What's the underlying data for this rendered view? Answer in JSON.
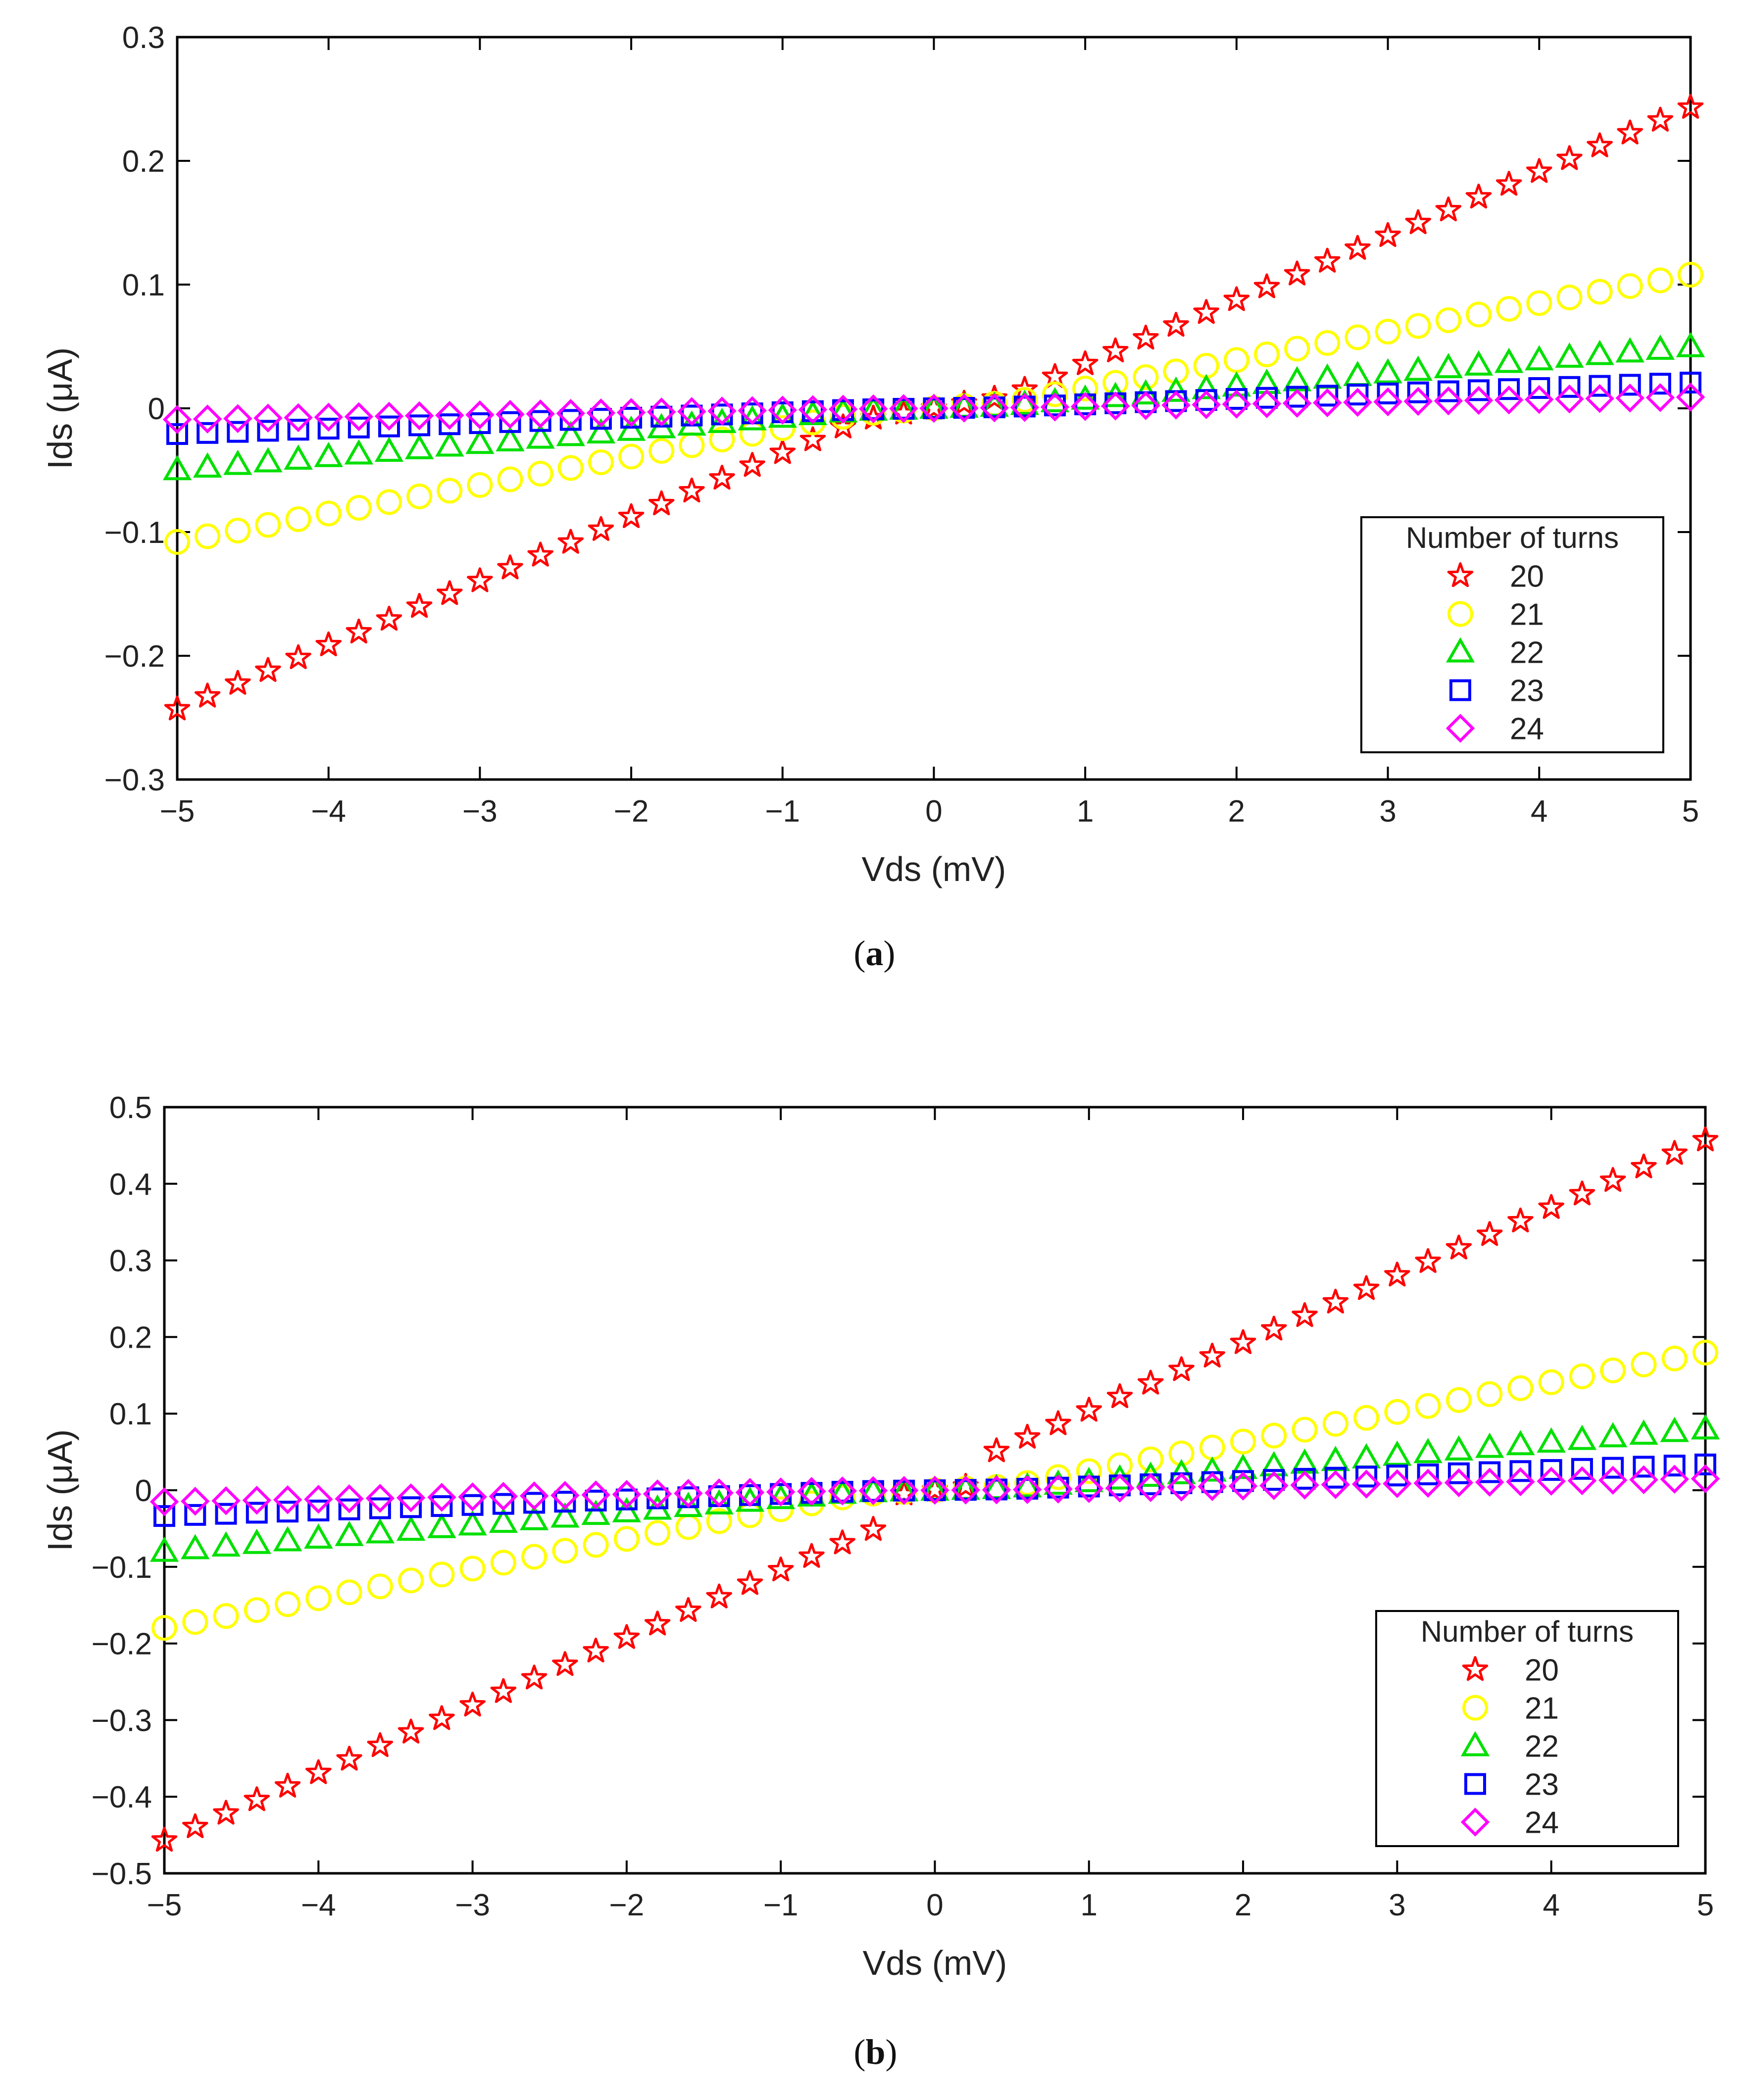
{
  "panels": [
    {
      "caption_letter": "a",
      "chart_data": {
        "type": "scatter",
        "xlabel": "Vds (mV)",
        "ylabel": "Ids (μA)",
        "xlim": [
          -5,
          5
        ],
        "ylim": [
          -0.3,
          0.3
        ],
        "xticks": [
          -5,
          -4,
          -3,
          -2,
          -1,
          0,
          1,
          2,
          3,
          4,
          5
        ],
        "xtick_labels": [
          "−5",
          "−4",
          "−3",
          "−2",
          "−1",
          "0",
          "1",
          "2",
          "3",
          "4",
          "5"
        ],
        "yticks": [
          -0.3,
          -0.2,
          -0.1,
          0,
          0.1,
          0.2,
          0.3
        ],
        "ytick_labels": [
          "−0.3",
          "−0.2",
          "−0.1",
          "0",
          "0.1",
          "0.2",
          "0.3"
        ],
        "grid": false,
        "legend": {
          "title": "Number of turns",
          "position": "lower-right"
        },
        "x": {
          "start": -5,
          "stop": 5,
          "step": 0.2
        },
        "series": [
          {
            "name": "20",
            "marker": "star",
            "color": "#ff0000",
            "outer_slope": 0.0518,
            "inner_slope": 0.02,
            "knee": 0.5
          },
          {
            "name": "21",
            "marker": "circle",
            "color": "#ffff00",
            "outer_slope": 0.023,
            "inner_slope": 0.009,
            "knee": 0.5
          },
          {
            "name": "22",
            "marker": "triangle",
            "color": "#00e000",
            "outer_slope": 0.0106,
            "inner_slope": 0.004,
            "knee": 0.5
          },
          {
            "name": "23",
            "marker": "square",
            "color": "#0000ff",
            "outer_slope": 0.0044,
            "inner_slope": 0.002,
            "knee": 0.5
          },
          {
            "name": "24",
            "marker": "diamond",
            "color": "#ff00ff",
            "outer_slope": 0.0019,
            "inner_slope": 0.001,
            "knee": 0.5
          }
        ]
      }
    },
    {
      "caption_letter": "b",
      "chart_data": {
        "type": "scatter",
        "xlabel": "Vds (mV)",
        "ylabel": "Ids (μA)",
        "xlim": [
          -5,
          5
        ],
        "ylim": [
          -0.5,
          0.5
        ],
        "xticks": [
          -5,
          -4,
          -3,
          -2,
          -1,
          0,
          1,
          2,
          3,
          4,
          5
        ],
        "xtick_labels": [
          "−5",
          "−4",
          "−3",
          "−2",
          "−1",
          "0",
          "1",
          "2",
          "3",
          "4",
          "5"
        ],
        "yticks": [
          -0.5,
          -0.4,
          -0.3,
          -0.2,
          -0.1,
          0,
          0.1,
          0.2,
          0.3,
          0.4,
          0.5
        ],
        "ytick_labels": [
          "−0.5",
          "−0.4",
          "−0.3",
          "−0.2",
          "−0.1",
          "0",
          "0.1",
          "0.2",
          "0.3",
          "0.4",
          "0.5"
        ],
        "grid": false,
        "legend": {
          "title": "Number of turns",
          "position": "lower-right"
        },
        "x": {
          "start": -5,
          "stop": 5,
          "step": 0.2
        },
        "series": [
          {
            "name": "20",
            "marker": "star",
            "color": "#ff0000",
            "outer_slope": 0.0882,
            "inner_slope": 0.025,
            "knee": 0.3,
            "jump": 0.035
          },
          {
            "name": "21",
            "marker": "circle",
            "color": "#ffff00",
            "outer_slope": 0.0387,
            "inner_slope": 0.011,
            "knee": 0.5
          },
          {
            "name": "22",
            "marker": "triangle",
            "color": "#00e000",
            "outer_slope": 0.0172,
            "inner_slope": 0.005,
            "knee": 0.5
          },
          {
            "name": "23",
            "marker": "square",
            "color": "#0000ff",
            "outer_slope": 0.0072,
            "inner_slope": 0.0025,
            "knee": 0.5
          },
          {
            "name": "24",
            "marker": "diamond",
            "color": "#ff00ff",
            "outer_slope": 0.0032,
            "inner_slope": 0.0012,
            "knee": 0.5
          }
        ]
      }
    }
  ]
}
